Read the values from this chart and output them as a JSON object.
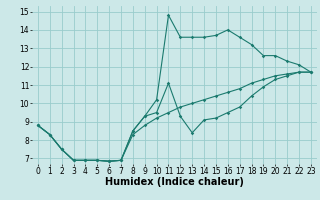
{
  "xlabel": "Humidex (Indice chaleur)",
  "background_color": "#cce8e8",
  "grid_color": "#99cccc",
  "line_color": "#1a7a6e",
  "xlim": [
    -0.5,
    23.5
  ],
  "ylim": [
    6.7,
    15.3
  ],
  "xticks": [
    0,
    1,
    2,
    3,
    4,
    5,
    6,
    7,
    8,
    9,
    10,
    11,
    12,
    13,
    14,
    15,
    16,
    17,
    18,
    19,
    20,
    21,
    22,
    23
  ],
  "yticks": [
    7,
    8,
    9,
    10,
    11,
    12,
    13,
    14,
    15
  ],
  "line1_y": [
    8.8,
    8.3,
    7.5,
    6.9,
    6.9,
    6.9,
    6.85,
    6.9,
    8.5,
    9.3,
    10.2,
    14.8,
    13.6,
    13.6,
    13.6,
    13.7,
    14.0,
    13.6,
    13.2,
    12.6,
    12.6,
    12.3,
    12.1,
    11.7
  ],
  "line2_y": [
    8.8,
    8.3,
    7.5,
    6.9,
    6.9,
    6.9,
    6.85,
    6.9,
    8.5,
    9.3,
    9.5,
    11.1,
    9.3,
    8.4,
    9.1,
    9.2,
    9.5,
    9.8,
    10.4,
    10.9,
    11.3,
    11.5,
    11.7,
    11.7
  ],
  "line3_y": [
    8.8,
    8.3,
    7.5,
    6.9,
    6.9,
    6.9,
    6.85,
    6.9,
    8.3,
    8.8,
    9.2,
    9.5,
    9.8,
    10.0,
    10.2,
    10.4,
    10.6,
    10.8,
    11.1,
    11.3,
    11.5,
    11.6,
    11.7,
    11.7
  ],
  "marker": "D",
  "markersize": 1.8,
  "linewidth": 0.8,
  "xlabel_fontsize": 7,
  "tick_fontsize": 5.5
}
